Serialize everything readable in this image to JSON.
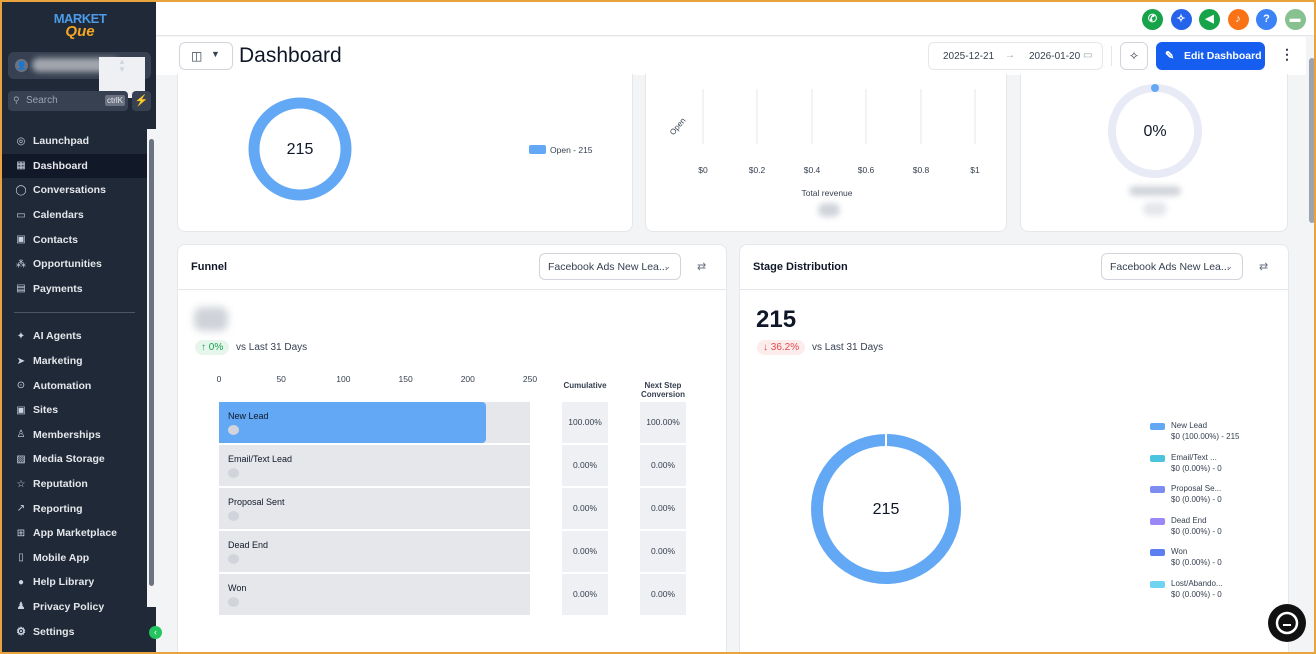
{
  "app": {
    "logo_line1": "MARKET",
    "logo_line2": "Que"
  },
  "sidebar": {
    "account_avatar": "👤",
    "search_placeholder": "Search",
    "search_shortcut": "ctrlK",
    "items_top": [
      {
        "label": "Launchpad",
        "icon": "rocket-icon",
        "glyph": "◎"
      },
      {
        "label": "Dashboard",
        "icon": "dashboard-icon",
        "glyph": "▦",
        "active": true
      },
      {
        "label": "Conversations",
        "icon": "chat-bubble-icon",
        "glyph": "◯"
      },
      {
        "label": "Calendars",
        "icon": "calendar-icon",
        "glyph": "▭"
      },
      {
        "label": "Contacts",
        "icon": "contact-card-icon",
        "glyph": "▣"
      },
      {
        "label": "Opportunities",
        "icon": "opportunities-icon",
        "glyph": "⁂"
      },
      {
        "label": "Payments",
        "icon": "payments-icon",
        "glyph": "▤"
      }
    ],
    "items_bottom": [
      {
        "label": "AI Agents",
        "icon": "ai-sparkle-icon",
        "glyph": "✦"
      },
      {
        "label": "Marketing",
        "icon": "send-icon",
        "glyph": "➤"
      },
      {
        "label": "Automation",
        "icon": "automation-icon",
        "glyph": "⊙"
      },
      {
        "label": "Sites",
        "icon": "sites-icon",
        "glyph": "▣"
      },
      {
        "label": "Memberships",
        "icon": "membership-icon",
        "glyph": "♙"
      },
      {
        "label": "Media Storage",
        "icon": "media-icon",
        "glyph": "▨"
      },
      {
        "label": "Reputation",
        "icon": "star-icon",
        "glyph": "☆"
      },
      {
        "label": "Reporting",
        "icon": "trend-icon",
        "glyph": "↗"
      },
      {
        "label": "App Marketplace",
        "icon": "grid-icon",
        "glyph": "⊞"
      },
      {
        "label": "Mobile App",
        "icon": "mobile-icon",
        "glyph": "▯"
      },
      {
        "label": "Help Library",
        "icon": "help-icon",
        "glyph": "●"
      },
      {
        "label": "Privacy Policy",
        "icon": "privacy-icon",
        "glyph": "♟"
      }
    ],
    "settings_label": "Settings"
  },
  "topbar": {
    "icons": [
      {
        "name": "phone-icon",
        "glyph": "✆",
        "color": "#16a34a"
      },
      {
        "name": "magic-wand-icon",
        "glyph": "✧",
        "color": "#2563eb"
      },
      {
        "name": "megaphone-icon",
        "glyph": "◀",
        "color": "#16a34a"
      },
      {
        "name": "bell-icon",
        "glyph": "♪",
        "color": "#f97316"
      },
      {
        "name": "help-icon",
        "glyph": "?",
        "color": "#3b82f6"
      },
      {
        "name": "user-avatar-icon",
        "glyph": "▬",
        "color": "#86c18f"
      }
    ]
  },
  "header": {
    "title": "Dashboard",
    "date_start": "2025-12-21",
    "date_arrow": "→",
    "date_end": "2026-01-20",
    "edit_label": "Edit Dashboard"
  },
  "top_cards": {
    "donut_value": "215",
    "donut_legend": "Open - 215",
    "bar_ylabel": "Open",
    "bar_xticks": [
      "$0",
      "$0.2",
      "$0.4",
      "$0.6",
      "$0.8",
      "$1"
    ],
    "bar_xlabel": "Total revenue",
    "gauge_value": "0%"
  },
  "funnel": {
    "title": "Funnel",
    "filter": "Facebook Ads New Lea...",
    "change": "↑ 0%",
    "vs": "vs Last 31 Days",
    "axis": [
      "0",
      "50",
      "100",
      "150",
      "200",
      "250"
    ],
    "col_cumulative": "Cumulative",
    "col_next": "Next Step Conversion",
    "stages": [
      {
        "label": "New Lead",
        "value": 215,
        "cumulative": "100.00%",
        "next": "100.00%"
      },
      {
        "label": "Email/Text Lead",
        "value": 0,
        "cumulative": "0.00%",
        "next": "0.00%"
      },
      {
        "label": "Proposal Sent",
        "value": 0,
        "cumulative": "0.00%",
        "next": "0.00%"
      },
      {
        "label": "Dead End",
        "value": 0,
        "cumulative": "0.00%",
        "next": "0.00%"
      },
      {
        "label": "Won",
        "value": 0,
        "cumulative": "0.00%",
        "next": "0.00%"
      }
    ]
  },
  "stage": {
    "title": "Stage Distribution",
    "filter": "Facebook Ads New Lea...",
    "total": "215",
    "change": "↓ 36.2%",
    "vs": "vs Last 31 Days",
    "donut_value": "215",
    "legend": [
      {
        "name": "New Lead",
        "value": "$0 (100.00%) - 215",
        "color": "#62a8f5"
      },
      {
        "name": "Email/Text ...",
        "value": "$0 (0.00%) - 0",
        "color": "#4cc4e0"
      },
      {
        "name": "Proposal Se...",
        "value": "$0 (0.00%) - 0",
        "color": "#7c8cf0"
      },
      {
        "name": "Dead End",
        "value": "$0 (0.00%) - 0",
        "color": "#9b87f5"
      },
      {
        "name": "Won",
        "value": "$0 (0.00%) - 0",
        "color": "#5b7ff0"
      },
      {
        "name": "Lost/Abando...",
        "value": "$0 (0.00%) - 0",
        "color": "#6fd3f2"
      }
    ]
  },
  "chart_data": [
    {
      "type": "bar",
      "orientation": "horizontal",
      "categories": [
        "New Lead",
        "Email/Text Lead",
        "Proposal Sent",
        "Dead End",
        "Won"
      ],
      "values": [
        215,
        0,
        0,
        0,
        0
      ],
      "xlim": [
        0,
        250
      ],
      "title": "Funnel"
    },
    {
      "type": "pie",
      "categories": [
        "New Lead",
        "Email/Text ...",
        "Proposal Se...",
        "Dead End",
        "Won",
        "Lost/Abando..."
      ],
      "values": [
        215,
        0,
        0,
        0,
        0,
        0
      ],
      "title": "Stage Distribution"
    }
  ],
  "colors": {
    "accent": "#155eef",
    "donut": "#62a8f5",
    "sidebar": "#1f2937"
  }
}
